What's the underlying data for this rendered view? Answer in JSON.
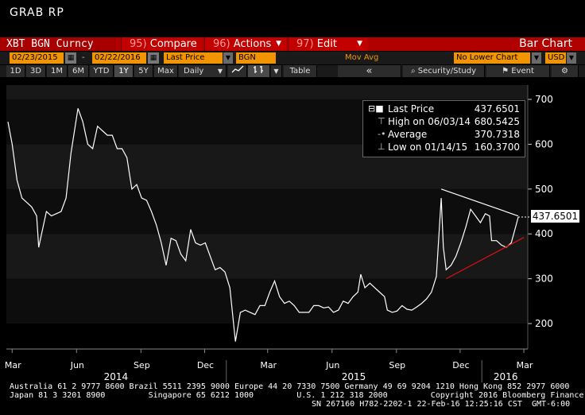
{
  "title": "GRAB RP",
  "toolbar1": {
    "ticker": "XBT BGN Curncy",
    "compare_num": "95)",
    "compare": "Compare",
    "actions_num": "96)",
    "actions": "Actions",
    "edit_num": "97)",
    "edit": "Edit",
    "chart_type": "Bar Chart"
  },
  "toolbar2": {
    "start_date": "02/23/2015",
    "dash": "-",
    "end_date": "02/22/2016",
    "field": "Last Price",
    "source": "BGN",
    "study": "Mov Avg",
    "lower_chart": "No Lower Chart",
    "currency": "USD"
  },
  "toolbar3": {
    "periods": [
      "1D",
      "3D",
      "1M",
      "6M",
      "YTD",
      "1Y",
      "5Y",
      "Max"
    ],
    "selected_period": "1Y",
    "frequency": "Daily",
    "table": "Table",
    "rewind": "«",
    "security_study": "Security/Study",
    "event": "Event"
  },
  "legend": {
    "last_label": "Last Price",
    "last_value": "437.6501",
    "high_label": "High on 06/03/14",
    "high_value": "680.5425",
    "avg_label": "Average",
    "avg_value": "370.7318",
    "low_label": "Low on 01/14/15",
    "low_value": "160.3700"
  },
  "price_tag": "437.6501",
  "chart_data": {
    "type": "line",
    "series": [
      {
        "name": "Last Price",
        "color": "#ffffff"
      }
    ],
    "x_range": [
      "2014-02-23",
      "2016-02-22"
    ],
    "month_ticks": [
      "Mar",
      "Jun",
      "Sep",
      "Dec",
      "Mar",
      "Jun",
      "Sep",
      "Dec",
      "Mar"
    ],
    "year_labels": [
      "2014",
      "2015",
      "2016"
    ],
    "y_ticks": [
      200,
      300,
      400,
      500,
      600,
      700
    ],
    "ylim": [
      150,
      730
    ],
    "points": [
      [
        "2014-02-23",
        650
      ],
      [
        "2014-03-01",
        600
      ],
      [
        "2014-03-08",
        520
      ],
      [
        "2014-03-15",
        480
      ],
      [
        "2014-03-22",
        470
      ],
      [
        "2014-03-29",
        460
      ],
      [
        "2014-04-05",
        440
      ],
      [
        "2014-04-08",
        370
      ],
      [
        "2014-04-12",
        400
      ],
      [
        "2014-04-19",
        450
      ],
      [
        "2014-04-26",
        440
      ],
      [
        "2014-05-03",
        445
      ],
      [
        "2014-05-10",
        450
      ],
      [
        "2014-05-17",
        480
      ],
      [
        "2014-05-24",
        580
      ],
      [
        "2014-06-03",
        680
      ],
      [
        "2014-06-10",
        650
      ],
      [
        "2014-06-17",
        600
      ],
      [
        "2014-06-24",
        590
      ],
      [
        "2014-07-01",
        640
      ],
      [
        "2014-07-08",
        630
      ],
      [
        "2014-07-15",
        620
      ],
      [
        "2014-07-22",
        620
      ],
      [
        "2014-07-29",
        590
      ],
      [
        "2014-08-05",
        590
      ],
      [
        "2014-08-12",
        570
      ],
      [
        "2014-08-19",
        500
      ],
      [
        "2014-08-26",
        510
      ],
      [
        "2014-09-02",
        480
      ],
      [
        "2014-09-09",
        475
      ],
      [
        "2014-09-16",
        450
      ],
      [
        "2014-09-23",
        420
      ],
      [
        "2014-09-30",
        380
      ],
      [
        "2014-10-07",
        330
      ],
      [
        "2014-10-14",
        390
      ],
      [
        "2014-10-21",
        385
      ],
      [
        "2014-10-28",
        355
      ],
      [
        "2014-11-04",
        340
      ],
      [
        "2014-11-11",
        410
      ],
      [
        "2014-11-18",
        380
      ],
      [
        "2014-11-25",
        375
      ],
      [
        "2014-12-02",
        380
      ],
      [
        "2014-12-09",
        350
      ],
      [
        "2014-12-16",
        320
      ],
      [
        "2014-12-23",
        325
      ],
      [
        "2014-12-30",
        315
      ],
      [
        "2015-01-06",
        280
      ],
      [
        "2015-01-14",
        160
      ],
      [
        "2015-01-21",
        225
      ],
      [
        "2015-01-28",
        230
      ],
      [
        "2015-02-04",
        225
      ],
      [
        "2015-02-11",
        220
      ],
      [
        "2015-02-18",
        240
      ],
      [
        "2015-02-25",
        240
      ],
      [
        "2015-03-04",
        270
      ],
      [
        "2015-03-11",
        295
      ],
      [
        "2015-03-18",
        260
      ],
      [
        "2015-03-25",
        245
      ],
      [
        "2015-04-01",
        250
      ],
      [
        "2015-04-08",
        240
      ],
      [
        "2015-04-15",
        225
      ],
      [
        "2015-04-22",
        225
      ],
      [
        "2015-04-29",
        225
      ],
      [
        "2015-05-06",
        240
      ],
      [
        "2015-05-13",
        240
      ],
      [
        "2015-05-20",
        235
      ],
      [
        "2015-05-27",
        237
      ],
      [
        "2015-06-03",
        225
      ],
      [
        "2015-06-10",
        230
      ],
      [
        "2015-06-17",
        250
      ],
      [
        "2015-06-24",
        245
      ],
      [
        "2015-07-01",
        260
      ],
      [
        "2015-07-08",
        270
      ],
      [
        "2015-07-12",
        310
      ],
      [
        "2015-07-18",
        280
      ],
      [
        "2015-07-25",
        290
      ],
      [
        "2015-08-01",
        280
      ],
      [
        "2015-08-08",
        270
      ],
      [
        "2015-08-15",
        260
      ],
      [
        "2015-08-19",
        230
      ],
      [
        "2015-08-26",
        225
      ],
      [
        "2015-09-02",
        228
      ],
      [
        "2015-09-09",
        240
      ],
      [
        "2015-09-16",
        232
      ],
      [
        "2015-09-23",
        230
      ],
      [
        "2015-09-30",
        237
      ],
      [
        "2015-10-07",
        245
      ],
      [
        "2015-10-14",
        255
      ],
      [
        "2015-10-21",
        270
      ],
      [
        "2015-10-28",
        305
      ],
      [
        "2015-11-04",
        480
      ],
      [
        "2015-11-07",
        370
      ],
      [
        "2015-11-11",
        320
      ],
      [
        "2015-11-18",
        330
      ],
      [
        "2015-11-25",
        350
      ],
      [
        "2015-12-02",
        380
      ],
      [
        "2015-12-09",
        415
      ],
      [
        "2015-12-16",
        455
      ],
      [
        "2015-12-23",
        440
      ],
      [
        "2015-12-30",
        425
      ],
      [
        "2016-01-06",
        445
      ],
      [
        "2016-01-12",
        440
      ],
      [
        "2016-01-15",
        385
      ],
      [
        "2016-01-22",
        385
      ],
      [
        "2016-01-29",
        375
      ],
      [
        "2016-02-05",
        370
      ],
      [
        "2016-02-12",
        380
      ],
      [
        "2016-02-19",
        420
      ],
      [
        "2016-02-22",
        437.65
      ]
    ],
    "trendlines": [
      {
        "color": "#ffffff",
        "from": [
          "2015-11-04",
          500
        ],
        "to": [
          "2016-02-22",
          440
        ]
      },
      {
        "color": "#e01010",
        "from": [
          "2015-11-11",
          300
        ],
        "to": [
          "2016-03-01",
          392
        ]
      }
    ]
  },
  "footer": {
    "line1": "Australia 61 2 9777 8600 Brazil 5511 2395 9000 Europe 44 20 7330 7500 Germany 49 69 9204 1210 Hong Kong 852 2977 6000",
    "line2": "Japan 81 3 3201 8900         Singapore 65 6212 1000         U.S. 1 212 318 2000         Copyright 2016 Bloomberg Finance L.P.",
    "line3": "SN 267160 H782-2202-1 22-Feb-16 12:25:16 CST  GMT-6:00"
  }
}
